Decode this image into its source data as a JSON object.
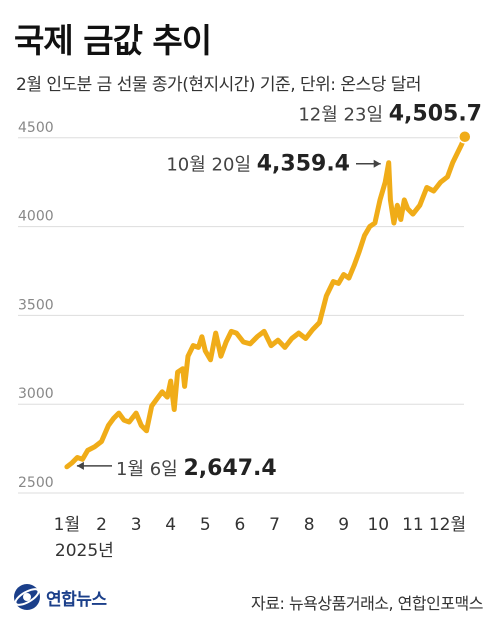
{
  "title": "국제 금값 추이",
  "subtitle": "2월 인도분 금 선물 종가(현지시간) 기준, 단위: 온스당 달러",
  "logo": {
    "text": "연합뉴스"
  },
  "source": "자료: 뉴욕상품거래소, 연합인포맥스",
  "colors": {
    "line": "#f0ac18",
    "end_dot": "#f0ac18",
    "grid": "#dddddd",
    "axis_text": "#888888"
  },
  "chart_data": {
    "type": "line",
    "title": "국제 금값 추이",
    "ylim": [
      2500,
      4600
    ],
    "yticks": [
      2500,
      3000,
      3500,
      4000,
      4500
    ],
    "ytick_labels": [
      "2500",
      "3000",
      "3500",
      "4000",
      "4500"
    ],
    "xlim": [
      0,
      11.85
    ],
    "xticks": [
      0.2,
      1.2,
      2.2,
      3.2,
      4.2,
      5.2,
      6.2,
      7.2,
      8.2,
      9.2,
      10.2,
      11.2
    ],
    "xtick_labels": [
      "1월",
      "2",
      "3",
      "4",
      "5",
      "6",
      "7",
      "8",
      "9",
      "10",
      "11",
      "12월"
    ],
    "x_year_label": "2025년",
    "x": [
      0.2,
      0.35,
      0.5,
      0.65,
      0.8,
      1.0,
      1.2,
      1.4,
      1.55,
      1.7,
      1.85,
      2.0,
      2.2,
      2.35,
      2.5,
      2.65,
      2.8,
      2.95,
      3.1,
      3.2,
      3.3,
      3.4,
      3.55,
      3.6,
      3.7,
      3.85,
      4.0,
      4.1,
      4.2,
      4.35,
      4.5,
      4.65,
      4.8,
      4.95,
      5.1,
      5.3,
      5.5,
      5.7,
      5.9,
      6.1,
      6.3,
      6.5,
      6.7,
      6.9,
      7.1,
      7.3,
      7.5,
      7.7,
      7.9,
      8.05,
      8.2,
      8.35,
      8.5,
      8.65,
      8.8,
      8.95,
      9.1,
      9.25,
      9.4,
      9.5,
      9.55,
      9.65,
      9.75,
      9.85,
      9.95,
      10.05,
      10.2,
      10.4,
      10.6,
      10.8,
      11.0,
      11.2,
      11.35,
      11.5,
      11.6,
      11.7
    ],
    "y": [
      2647.4,
      2670,
      2700,
      2690,
      2740,
      2760,
      2790,
      2880,
      2920,
      2950,
      2910,
      2900,
      2950,
      2880,
      2850,
      2990,
      3030,
      3070,
      3040,
      3130,
      2970,
      3180,
      3200,
      3100,
      3270,
      3330,
      3320,
      3380,
      3300,
      3250,
      3400,
      3270,
      3350,
      3410,
      3400,
      3350,
      3340,
      3380,
      3410,
      3330,
      3360,
      3320,
      3370,
      3400,
      3370,
      3420,
      3460,
      3610,
      3690,
      3680,
      3730,
      3710,
      3780,
      3860,
      3950,
      4000,
      4020,
      4150,
      4250,
      4359.4,
      4150,
      4020,
      4120,
      4040,
      4150,
      4100,
      4070,
      4120,
      4220,
      4200,
      4250,
      4280,
      4360,
      4420,
      4460,
      4505.7
    ],
    "annotations": [
      {
        "label": "1월 6일",
        "value_label": "2,647.4",
        "x": 0.2,
        "y": 2647.4
      },
      {
        "label": "10월 20일",
        "value_label": "4,359.4",
        "x": 9.5,
        "y": 4359.4
      },
      {
        "label": "12월 23일",
        "value_label": "4,505.7",
        "x": 11.7,
        "y": 4505.7
      }
    ]
  }
}
